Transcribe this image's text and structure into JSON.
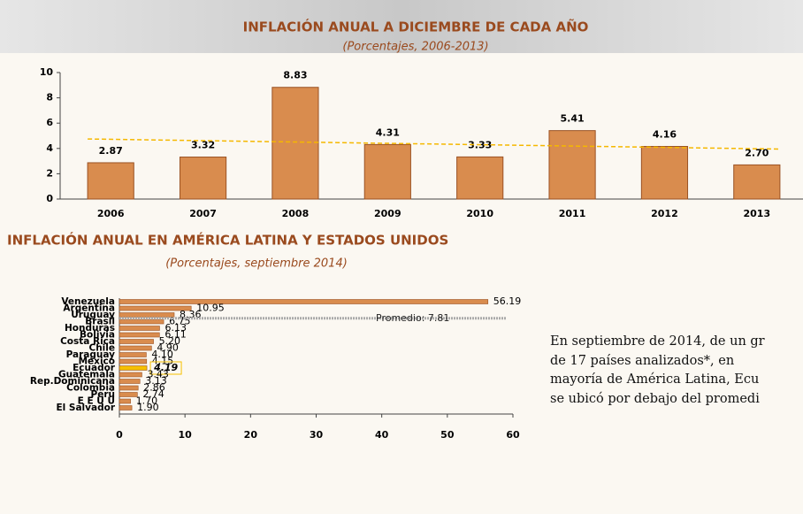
{
  "chart_data": [
    {
      "type": "bar",
      "title": "INFLACIÓN ANUAL A DICIEMBRE DE CADA AÑO",
      "subtitle": "(Porcentajes, 2006-2013)",
      "categories": [
        "2006",
        "2007",
        "2008",
        "2009",
        "2010",
        "2011",
        "2012",
        "2013"
      ],
      "values": [
        2.87,
        3.32,
        8.83,
        4.31,
        3.33,
        5.41,
        4.16,
        2.7
      ],
      "value_labels": [
        "2.87",
        "3.32",
        "8.83",
        "4.31",
        "3.33",
        "5.41",
        "4.16",
        "2.70"
      ],
      "color": "#d98c4e",
      "trend_values": [
        4.75,
        3.95
      ],
      "trend_color": "#f5b800",
      "ylim": [
        0,
        10
      ],
      "yticks": [
        0,
        2,
        4,
        6,
        8,
        10
      ]
    },
    {
      "type": "hbar",
      "title": "INFLACIÓN ANUAL EN AMÉRICA LATINA Y ESTADOS UNIDOS",
      "subtitle": "(Porcentajes, septiembre 2014)",
      "categories": [
        "Venezuela",
        "Argentina",
        "Uruguay",
        "Brasil",
        "Honduras",
        "Bolivia",
        "Costa Rica",
        "Chile",
        "Paraguay",
        "México",
        "Ecuador",
        "Guatemala",
        "Rep.Dominicana",
        "Colombia",
        "Perú",
        "E E U U",
        "El Salvador"
      ],
      "values": [
        56.19,
        10.95,
        8.36,
        6.75,
        6.13,
        6.11,
        5.2,
        4.9,
        4.1,
        4.15,
        4.19,
        3.43,
        3.13,
        2.86,
        2.74,
        1.7,
        1.9
      ],
      "value_labels": [
        "56.19",
        "10.95",
        "8.36",
        "6.75",
        "6.13",
        "6.11",
        "5.20",
        "4.90",
        "4.10",
        "4.15",
        "4.19",
        "3.43",
        "3.13",
        "2.86",
        "2.74",
        "1.70",
        "1.90"
      ],
      "colors": [
        "#d98c4e",
        "#d98c4e",
        "#d98c4e",
        "#d98c4e",
        "#d98c4e",
        "#d98c4e",
        "#d98c4e",
        "#d98c4e",
        "#d98c4e",
        "#d98c4e",
        "#f5c000",
        "#d98c4e",
        "#d98c4e",
        "#d98c4e",
        "#d98c4e",
        "#d98c4e",
        "#d98c4e"
      ],
      "average_label": "Promedio: 7.81",
      "xlim": [
        0,
        60
      ],
      "xticks": [
        0,
        10,
        20,
        30,
        40,
        50,
        60
      ]
    }
  ],
  "paragraph": {
    "lines": [
      "En septiembre de 2014, de un gr",
      "de 17 países analizados*, en",
      "mayoría de América Latina, Ecu",
      "se ubicó por debajo del promedi"
    ]
  }
}
